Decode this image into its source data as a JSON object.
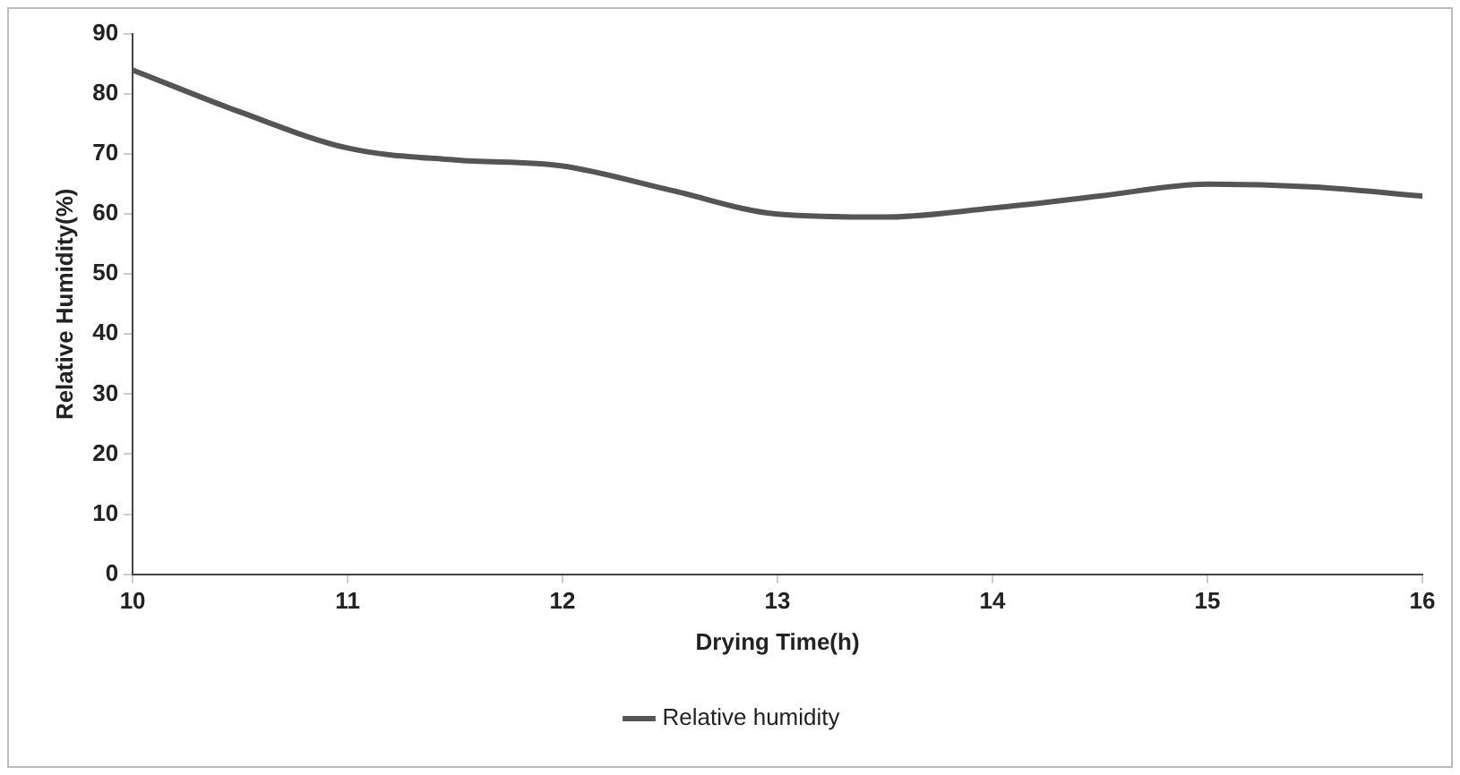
{
  "chart_data": {
    "type": "line",
    "xlabel": "Drying Time(h)",
    "ylabel": "Relative Humidity(%)",
    "xlim": [
      10,
      16
    ],
    "xticks": [
      10,
      11,
      12,
      13,
      14,
      15,
      16
    ],
    "ylim": [
      0,
      90
    ],
    "yticks": [
      0,
      10,
      20,
      30,
      40,
      50,
      60,
      70,
      80,
      90
    ],
    "grid": false,
    "legend": "bottom",
    "marker": "none",
    "line_style": "solid",
    "series": [
      {
        "name": "Relative humidity",
        "color": "#555555",
        "x": [
          10,
          10.5,
          11,
          11.5,
          12,
          12.5,
          13,
          13.5,
          14,
          14.5,
          15,
          15.5,
          16
        ],
        "values": [
          84,
          77,
          71,
          69,
          68,
          64,
          60,
          59.5,
          61,
          63,
          65,
          64.5,
          63
        ]
      }
    ]
  }
}
